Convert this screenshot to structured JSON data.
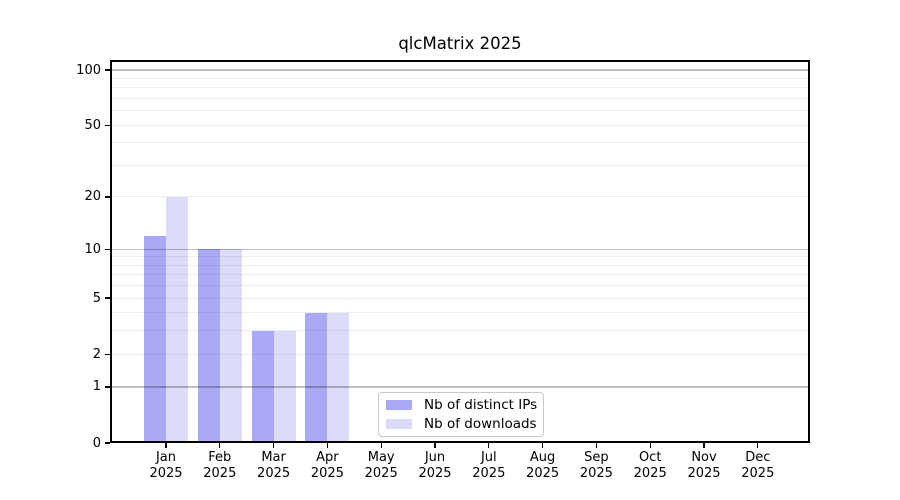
{
  "title": "qlcMatrix 2025",
  "colors": {
    "ips_bar": "#a9a9f5",
    "downloads_bar": "#dcdcf8",
    "major_grid": "rgba(0,0,0,0.25)",
    "minor_grid": "rgba(0,0,0,0.07)",
    "axis": "#000000",
    "legend_border": "#c8c8c8"
  },
  "legend": {
    "items": [
      {
        "label": "Nb of distinct IPs"
      },
      {
        "label": "Nb of downloads"
      }
    ]
  },
  "chart_data": {
    "type": "bar",
    "title": "qlcMatrix 2025",
    "categories": [
      "Jan 2025",
      "Feb 2025",
      "Mar 2025",
      "Apr 2025",
      "May 2025",
      "Jun 2025",
      "Jul 2025",
      "Aug 2025",
      "Sep 2025",
      "Oct 2025",
      "Nov 2025",
      "Dec 2025"
    ],
    "series": [
      {
        "name": "Nb of distinct IPs",
        "color": "#a9a9f5",
        "values": [
          12,
          10,
          3,
          4,
          0,
          0,
          0,
          0,
          0,
          0,
          0,
          0
        ]
      },
      {
        "name": "Nb of downloads",
        "color": "#dcdcf8",
        "values": [
          20,
          10,
          3,
          4,
          0,
          0,
          0,
          0,
          0,
          0,
          0,
          0
        ]
      }
    ],
    "xlabel": "",
    "ylabel": "",
    "y_scale": "log1p",
    "ylim": [
      0,
      113
    ],
    "y_ticks": [
      0,
      1,
      2,
      5,
      10,
      20,
      50,
      100
    ],
    "y_major_gridlines": [
      1,
      10,
      100
    ],
    "y_minor_gridlines": [
      2,
      3,
      4,
      5,
      6,
      7,
      8,
      9,
      20,
      30,
      40,
      50,
      60,
      70,
      80,
      90
    ],
    "grid": "on",
    "legend_position": "inside-bottom-center"
  }
}
